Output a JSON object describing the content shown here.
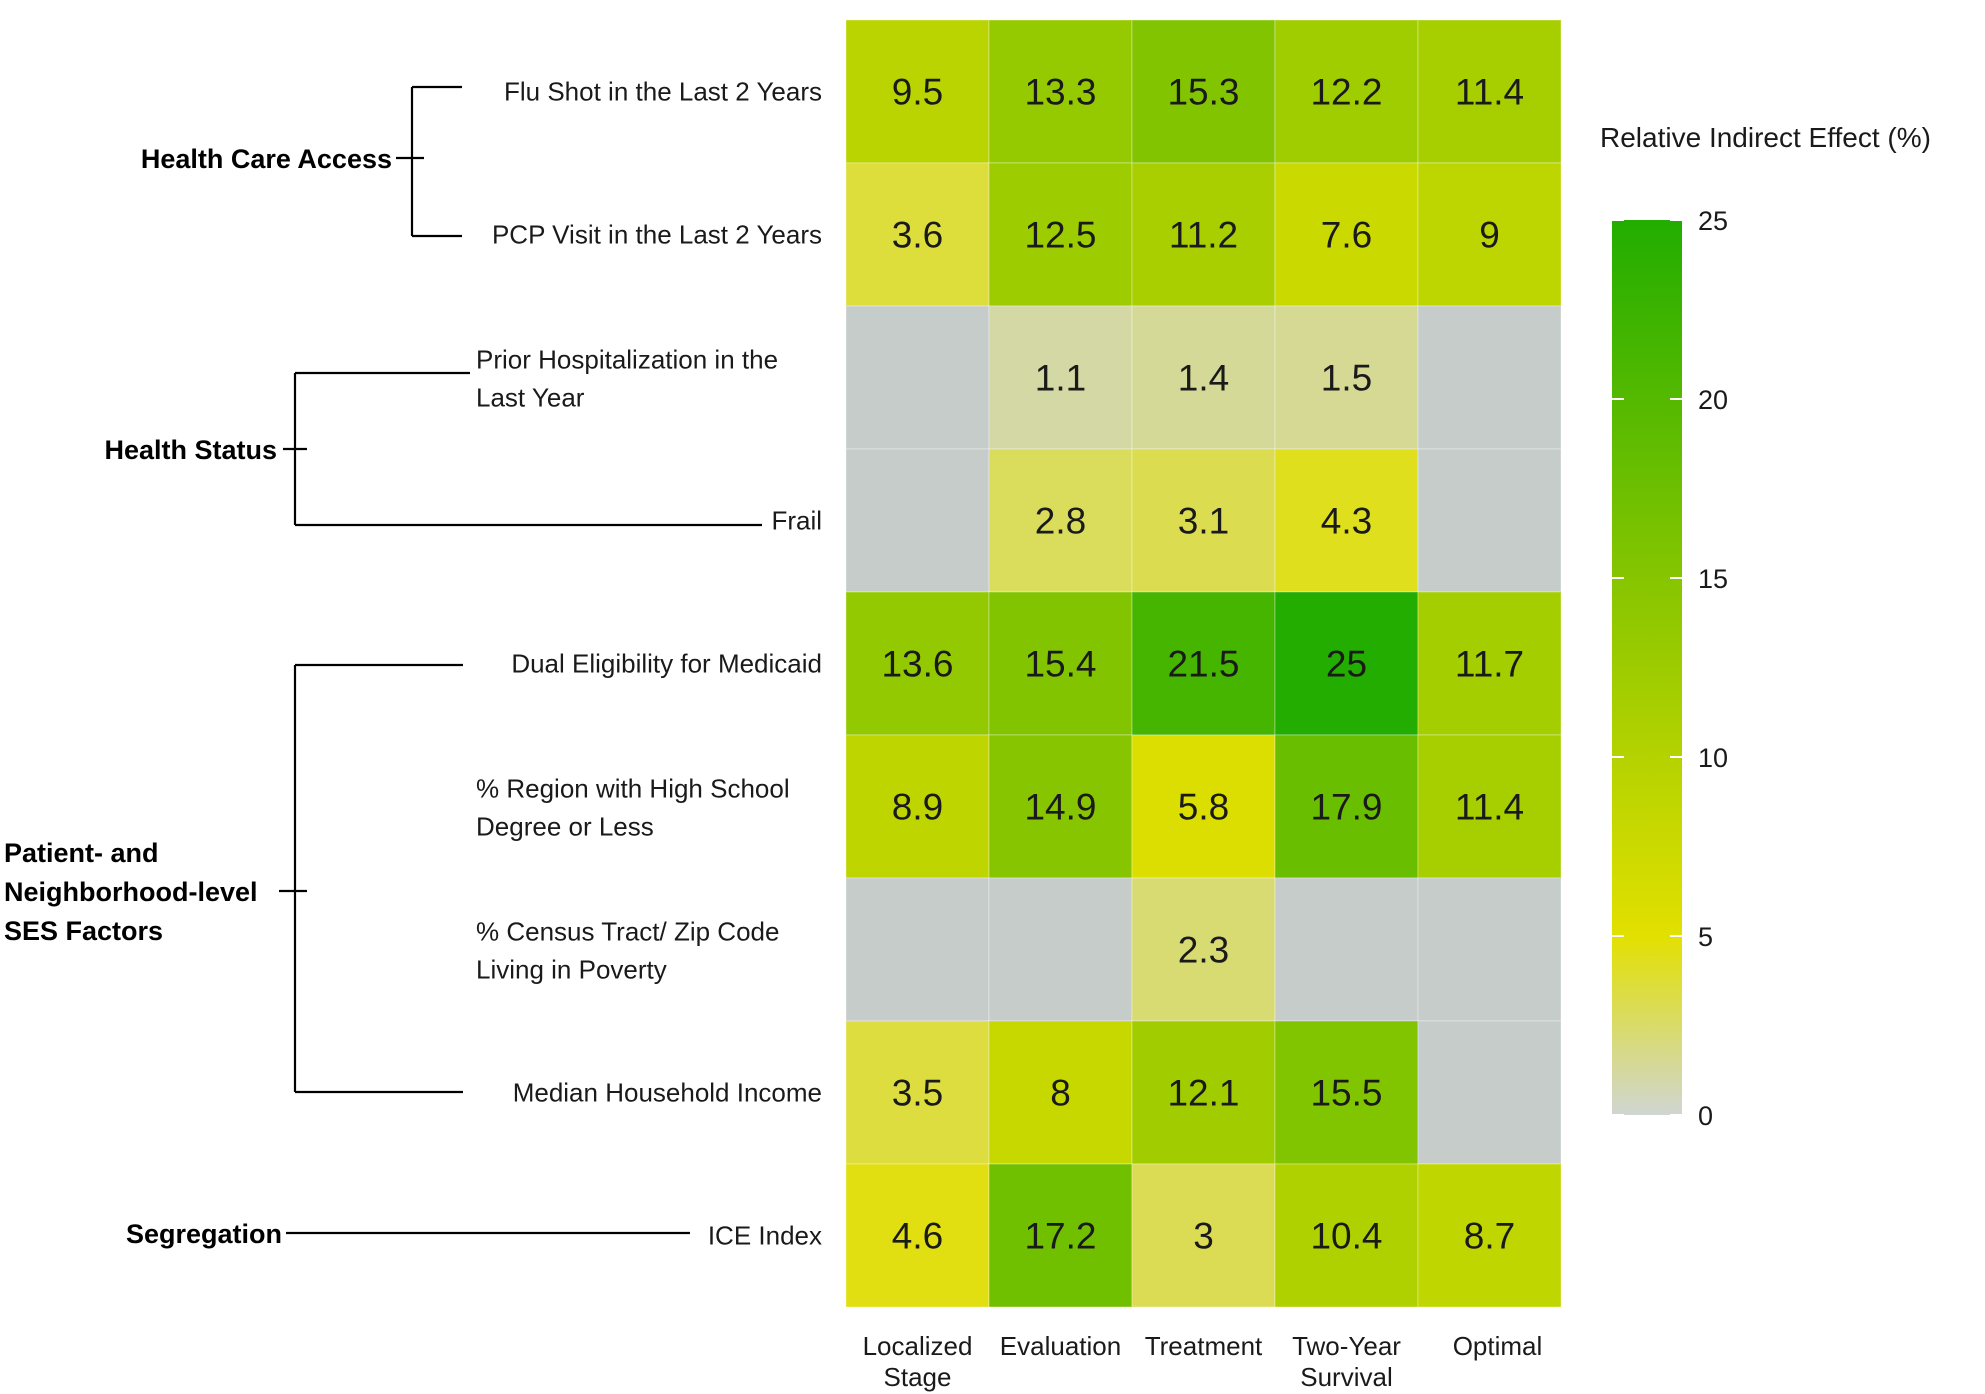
{
  "chart_data": {
    "type": "heatmap",
    "columns": [
      "Localized Stage",
      "Evaluation",
      "Treatment",
      "Two-Year Survival",
      "Optimal"
    ],
    "groups": [
      {
        "name": "Health Care Access",
        "rows": [
          "Flu Shot in the Last 2 Years",
          "PCP Visit in the Last 2 Years"
        ]
      },
      {
        "name": "Health Status",
        "rows": [
          "Prior Hospitalization in the Last Year",
          "Frail"
        ]
      },
      {
        "name": "Patient- and Neighborhood-level SES Factors",
        "rows": [
          "Dual Eligibility for Medicaid",
          "% Region with High School Degree or Less",
          "% Census Tract/ Zip Code Living in Poverty",
          "Median Household Income"
        ]
      },
      {
        "name": "Segregation",
        "rows": [
          "ICE Index"
        ]
      }
    ],
    "rows": [
      {
        "label": "Flu Shot in the Last 2 Years",
        "values": [
          9.5,
          13.3,
          15.3,
          12.2,
          11.4
        ]
      },
      {
        "label": "PCP Visit in the Last 2 Years",
        "values": [
          3.6,
          12.5,
          11.2,
          7.6,
          9
        ]
      },
      {
        "label": "Prior Hospitalization in the Last Year",
        "values": [
          null,
          1.1,
          1.4,
          1.5,
          null
        ]
      },
      {
        "label": "Frail",
        "values": [
          null,
          2.8,
          3.1,
          4.3,
          null
        ]
      },
      {
        "label": "Dual Eligibility for Medicaid",
        "values": [
          13.6,
          15.4,
          21.5,
          25,
          11.7
        ]
      },
      {
        "label": "% Region with High School Degree or Less",
        "values": [
          8.9,
          14.9,
          5.8,
          17.9,
          11.4
        ]
      },
      {
        "label": "% Census Tract/ Zip Code Living in Poverty",
        "values": [
          null,
          null,
          2.3,
          null,
          null
        ]
      },
      {
        "label": "Median Household Income",
        "values": [
          3.5,
          8,
          12.1,
          15.5,
          null
        ]
      },
      {
        "label": "ICE Index",
        "values": [
          4.6,
          17.2,
          3,
          10.4,
          8.7
        ]
      }
    ],
    "legend": {
      "title": "Relative Indirect Effect (%)",
      "ticks": [
        0,
        5,
        10,
        15,
        20,
        25
      ],
      "range": [
        0,
        25
      ],
      "colors": [
        "#d0d6d2",
        "#e2e000",
        "#9ccc00",
        "#22ad00"
      ]
    },
    "missing_color": "#c5ccca"
  }
}
